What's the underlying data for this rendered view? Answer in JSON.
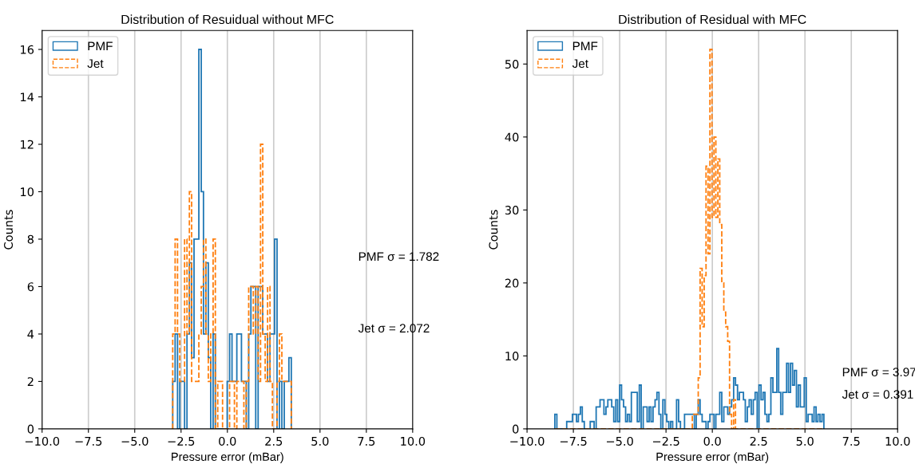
{
  "chart_data": [
    {
      "type": "histogram",
      "title": "Distribution of Resuidual without MFC",
      "xlabel": "Pressure error (mBar)",
      "ylabel": "Counts",
      "xlim": [
        -10,
        10
      ],
      "xticks": [
        {
          "value": -10,
          "label": "−10.0"
        },
        {
          "value": -7.5,
          "label": "−7.5"
        },
        {
          "value": -5,
          "label": "−5.0"
        },
        {
          "value": -2.5,
          "label": "−2.5"
        },
        {
          "value": 0,
          "label": "0.0"
        },
        {
          "value": 2.5,
          "label": "2.5"
        },
        {
          "value": 5,
          "label": "5.0"
        },
        {
          "value": 7.5,
          "label": "7.5"
        },
        {
          "value": 10,
          "label": "10.0"
        }
      ],
      "ylim": [
        0,
        16.8
      ],
      "yticks": [
        0,
        2,
        4,
        6,
        8,
        10,
        12,
        14,
        16
      ],
      "grid": "x",
      "legend": "top left",
      "annotations": [
        "PMF σ = 1.782",
        "Jet σ = 2.072"
      ],
      "bins": [
        -2.95,
        -2.82,
        -2.69,
        -2.57,
        -2.44,
        -2.31,
        -2.18,
        -2.05,
        -1.93,
        -1.8,
        -1.67,
        -1.54,
        -1.41,
        -1.29,
        -1.16,
        -1.03,
        -0.9,
        -0.77,
        -0.65,
        -0.52,
        -0.39,
        -0.26,
        -0.13,
        -0.01,
        0.12,
        0.25,
        0.38,
        0.51,
        0.63,
        0.76,
        0.89,
        1.02,
        1.15,
        1.27,
        1.4,
        1.53,
        1.66,
        1.79,
        1.91,
        2.04,
        2.17,
        2.3,
        2.43,
        2.55,
        2.68,
        2.81,
        2.94,
        3.07,
        3.19,
        3.32,
        3.45
      ],
      "series": [
        {
          "name": "PMF",
          "color": "#1f77b4",
          "line_style": "solid",
          "values": [
            2,
            4,
            0,
            2,
            2,
            0,
            4,
            7,
            3,
            8,
            8,
            16,
            10,
            4,
            7,
            3,
            0,
            4,
            0,
            0,
            0,
            0,
            0,
            2,
            4,
            2,
            2,
            4,
            4,
            2,
            2,
            0,
            4,
            6,
            6,
            0,
            6,
            6,
            4,
            4,
            2,
            4,
            4,
            8,
            0,
            2,
            0,
            2,
            2,
            3
          ]
        },
        {
          "name": "Jet",
          "color": "#ff7f0e",
          "line_style": "dashed",
          "values": [
            4,
            8,
            4,
            2,
            2,
            8,
            4,
            10,
            2,
            2,
            2,
            4,
            6,
            8,
            4,
            2,
            4,
            8,
            0,
            2,
            2,
            0,
            0,
            0,
            2,
            2,
            0,
            2,
            2,
            2,
            0,
            2,
            6,
            6,
            4,
            6,
            2,
            12,
            4,
            2,
            6,
            2,
            0,
            0,
            2,
            4,
            2,
            2,
            2,
            2
          ]
        }
      ]
    },
    {
      "type": "histogram",
      "title": "Distribution of Residual with MFC",
      "xlabel": "Pressure error (mBar)",
      "ylabel": "Counts",
      "xlim": [
        -10,
        10
      ],
      "xticks": [
        {
          "value": -10,
          "label": "−10.0"
        },
        {
          "value": -7.5,
          "label": "−7.5"
        },
        {
          "value": -5,
          "label": "−5.0"
        },
        {
          "value": -2.5,
          "label": "−2.5"
        },
        {
          "value": 0,
          "label": "0.0"
        },
        {
          "value": 2.5,
          "label": "2.5"
        },
        {
          "value": 5,
          "label": "5.0"
        },
        {
          "value": 7.5,
          "label": "7.5"
        },
        {
          "value": 10,
          "label": "10.0"
        }
      ],
      "ylim": [
        0,
        54.6
      ],
      "yticks": [
        0,
        10,
        20,
        30,
        40,
        50
      ],
      "grid": "x",
      "legend": "top left",
      "annotations": [
        "PMF σ = 3.97",
        "Jet σ = 0.391"
      ],
      "bins": [
        -8.5,
        -8.39,
        -8.29,
        -8.18,
        -8.08,
        -7.97,
        -7.86,
        -7.76,
        -7.65,
        -7.55,
        -7.44,
        -7.33,
        -7.23,
        -7.12,
        -7.02,
        -6.91,
        -6.8,
        -6.7,
        -6.59,
        -6.49,
        -6.38,
        -6.27,
        -6.17,
        -6.06,
        -5.96,
        -5.85,
        -5.74,
        -5.64,
        -5.53,
        -5.43,
        -5.32,
        -5.21,
        -5.11,
        -5.0,
        -4.9,
        -4.79,
        -4.68,
        -4.58,
        -4.47,
        -4.37,
        -4.26,
        -4.15,
        -4.05,
        -3.94,
        -3.84,
        -3.73,
        -3.62,
        -3.52,
        -3.41,
        -3.31,
        -3.2,
        -3.09,
        -2.99,
        -2.88,
        -2.78,
        -2.67,
        -2.56,
        -2.46,
        -2.35,
        -2.25,
        -2.14,
        -2.03,
        -1.93,
        -1.82,
        -1.72,
        -1.61,
        -1.5,
        -1.4,
        -1.29,
        -1.19,
        -1.08,
        -0.97,
        -0.87,
        -0.76,
        -0.66,
        -0.55,
        -0.44,
        -0.34,
        -0.23,
        -0.13,
        -0.02,
        0.09,
        0.19,
        0.3,
        0.4,
        0.51,
        0.62,
        0.72,
        0.83,
        0.93,
        1.04,
        1.15,
        1.25,
        1.36,
        1.46,
        1.57,
        1.68,
        1.78,
        1.89,
        1.99,
        2.1,
        2.21,
        2.31,
        2.42,
        2.52,
        2.63,
        2.74,
        2.84,
        2.95,
        3.05,
        3.16,
        3.27,
        3.37,
        3.48,
        3.58,
        3.69,
        3.8,
        3.9,
        4.01,
        4.11,
        4.22,
        4.33,
        4.43,
        4.54,
        4.64,
        4.75,
        4.86,
        4.96,
        5.07,
        5.17,
        5.28,
        5.39,
        5.49,
        5.6,
        5.7,
        5.81,
        5.92,
        6.02
      ],
      "series": [
        {
          "name": "PMF",
          "color": "#1f77b4",
          "line_style": "solid",
          "values": [
            2,
            0,
            0,
            0,
            0,
            0,
            1,
            1,
            1,
            2,
            2,
            1,
            2,
            3,
            1,
            0,
            0,
            0,
            1,
            1,
            0,
            3,
            3,
            4,
            4,
            2,
            3,
            4,
            4,
            3,
            1,
            4,
            1,
            6,
            4,
            3,
            1,
            2,
            1,
            5,
            5,
            5,
            1,
            6,
            0,
            3,
            3,
            1,
            3,
            1,
            3,
            4,
            5,
            2,
            0,
            4,
            2,
            1,
            0,
            1,
            0,
            0,
            4,
            1,
            0,
            0,
            2,
            2,
            2,
            2,
            2,
            0,
            2,
            4,
            2,
            1,
            1,
            0,
            1,
            2,
            2,
            0,
            2,
            2,
            5,
            1,
            3,
            3,
            2,
            3,
            4,
            7,
            6,
            4,
            5,
            5,
            4,
            1,
            3,
            4,
            2,
            4,
            5,
            0,
            6,
            4,
            5,
            2,
            1,
            2,
            7,
            5,
            5,
            11,
            5,
            2,
            5,
            5,
            9,
            5,
            9,
            6,
            8,
            3,
            6,
            3,
            3,
            7,
            1,
            2,
            2,
            1,
            3,
            1,
            2,
            1,
            2
          ]
        },
        {
          "name": "Jet",
          "color": "#ff7f0e",
          "line_style": "dashed",
          "values": [
            0,
            0,
            0,
            0,
            0,
            0,
            0,
            0,
            0,
            0,
            0,
            0,
            0,
            0,
            0,
            0,
            0,
            0,
            0,
            0,
            0,
            0,
            0,
            0,
            0,
            0,
            0,
            0,
            0,
            0,
            0,
            0,
            0,
            0,
            0,
            0,
            0,
            0,
            0,
            0,
            0,
            0,
            0,
            0,
            0,
            0,
            0,
            0,
            0,
            0,
            0,
            0,
            0,
            0,
            0,
            0,
            0,
            0,
            0,
            0,
            0,
            0,
            0,
            0,
            0,
            0,
            0,
            0,
            0,
            0,
            2,
            2,
            2,
            7,
            22,
            14,
            21,
            36,
            24,
            52,
            29,
            40,
            29,
            37,
            28,
            20,
            16,
            14,
            12,
            2,
            0,
            4,
            0,
            0,
            0,
            0,
            0,
            0,
            0,
            0,
            0,
            0,
            0,
            0,
            0,
            0,
            0,
            0,
            0,
            0,
            0,
            0,
            0,
            0,
            0,
            0,
            0,
            0,
            0,
            0,
            0,
            0,
            0,
            0,
            0,
            0,
            0,
            0,
            0,
            0,
            0,
            0,
            0,
            0,
            0,
            0,
            0
          ]
        }
      ]
    }
  ]
}
